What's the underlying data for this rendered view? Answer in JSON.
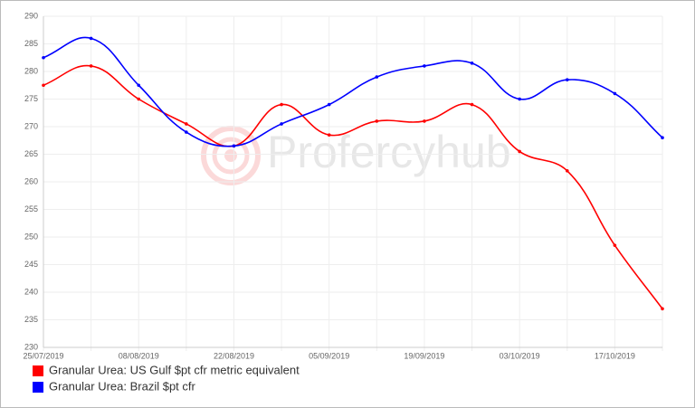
{
  "chart_data": {
    "type": "line",
    "watermark": "Profercyhub",
    "categories": [
      "25/07/2019",
      null,
      "08/08/2019",
      null,
      "22/08/2019",
      null,
      "05/09/2019",
      null,
      "19/09/2019",
      null,
      "03/10/2019",
      null,
      "17/10/2019",
      null
    ],
    "series": [
      {
        "name": "Granular Urea: US Gulf $pt cfr metric equivalent",
        "color": "#ff0000",
        "values": [
          277.5,
          281,
          275,
          270.5,
          266.5,
          274,
          268.5,
          271,
          271,
          274,
          265.5,
          262,
          248.5,
          237
        ]
      },
      {
        "name": "Granular Urea: Brazil $pt cfr",
        "color": "#0000ff",
        "values": [
          282.5,
          286,
          277.5,
          269,
          266.5,
          270.5,
          274,
          279,
          281,
          281.5,
          275,
          278.5,
          276,
          268
        ]
      }
    ],
    "ylim": [
      230,
      290
    ],
    "yticks": [
      230,
      235,
      240,
      245,
      250,
      255,
      260,
      265,
      270,
      275,
      280,
      285,
      290
    ],
    "grid": true
  }
}
